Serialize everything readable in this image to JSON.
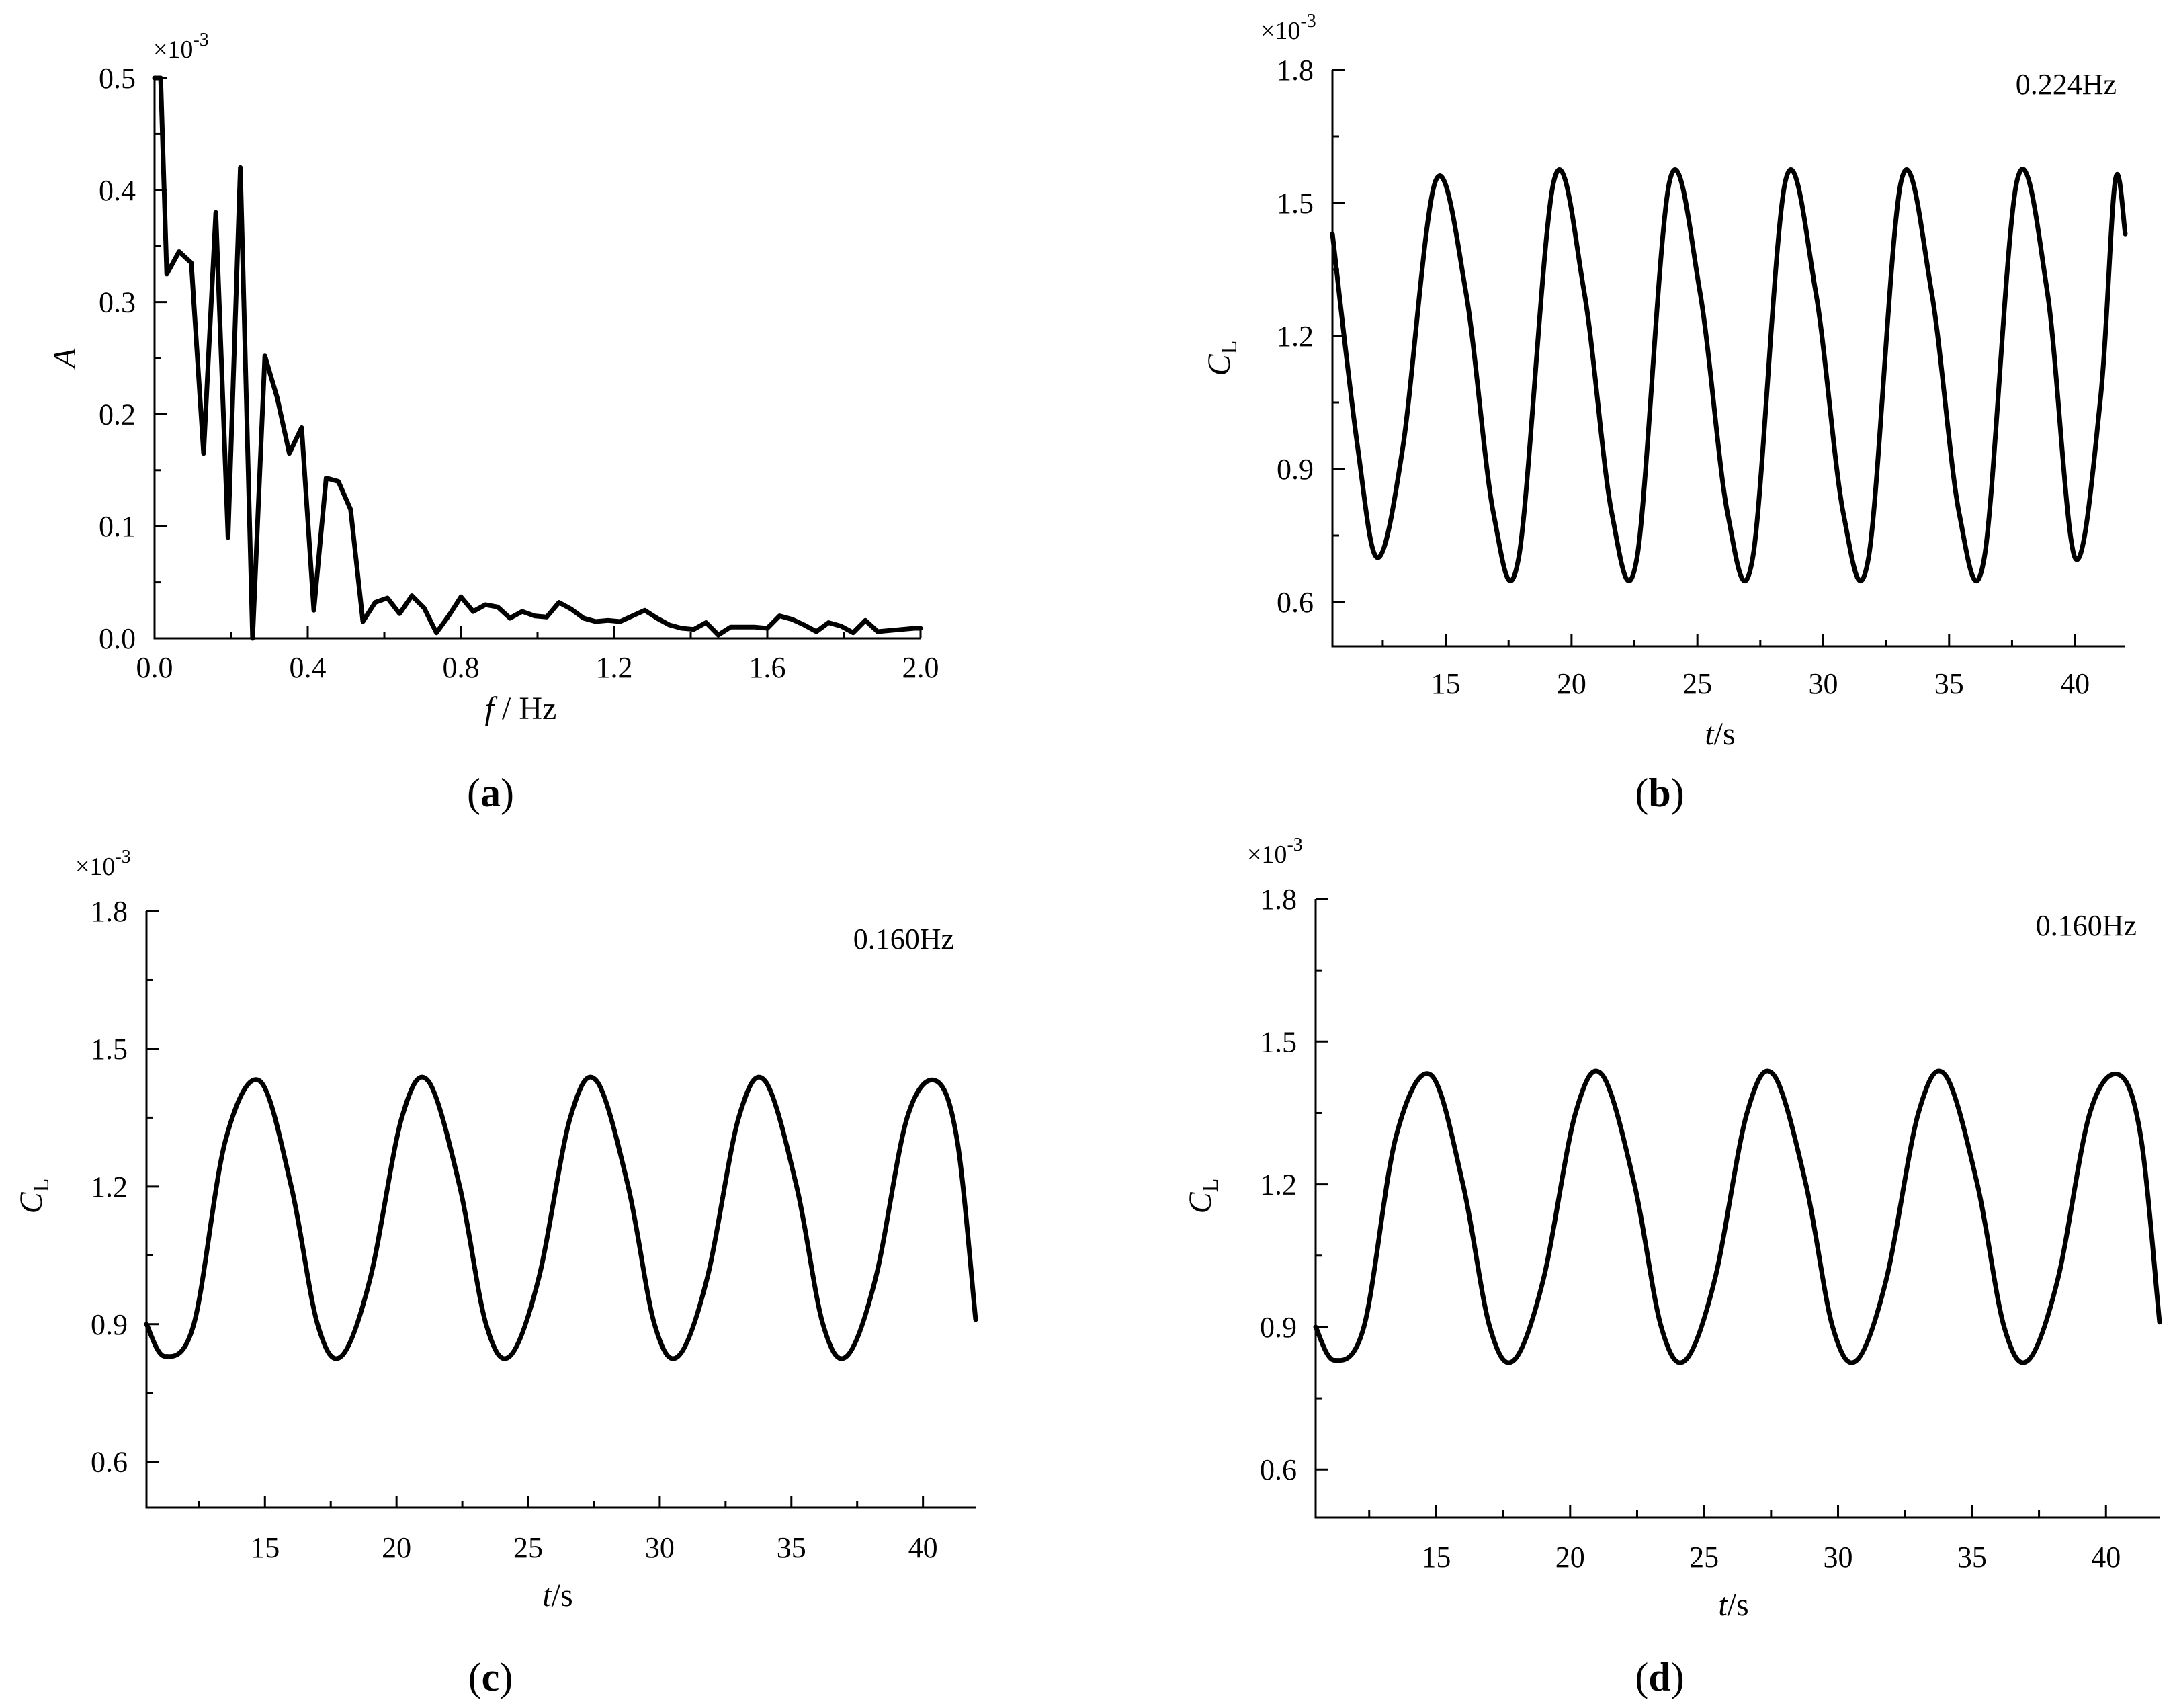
{
  "chart_data": [
    {
      "id": "a",
      "type": "line",
      "caption": {
        "open": "(",
        "letter": "a",
        "close": ")"
      },
      "x_label": {
        "italic": "f",
        "rest": " / Hz"
      },
      "y_label": {
        "italic": "A",
        "sub": ""
      },
      "multiplier": {
        "base": "×10",
        "exp": "-3"
      },
      "annotation": "",
      "xlim": [
        0.0,
        2.0
      ],
      "ylim": [
        0.0,
        0.5
      ],
      "xticks": [
        0.0,
        0.4,
        0.8,
        1.2,
        1.6,
        2.0
      ],
      "xtick_labels": [
        "0.0",
        "0.4",
        "0.8",
        "1.2",
        "1.6",
        "2.0"
      ],
      "xminor": [
        0.2,
        0.6,
        1.0,
        1.4,
        1.8
      ],
      "yticks": [
        0.0,
        0.1,
        0.2,
        0.3,
        0.4,
        0.5
      ],
      "ytick_labels": [
        "0.0",
        "0.1",
        "0.2",
        "0.3",
        "0.4",
        "0.5"
      ],
      "yminor": [
        0.05,
        0.15,
        0.25,
        0.35,
        0.45
      ],
      "series": [
        {
          "x": [
            0.0,
            0.016,
            0.032,
            0.064,
            0.096,
            0.128,
            0.16,
            0.192,
            0.224,
            0.256,
            0.288,
            0.32,
            0.352,
            0.384,
            0.416,
            0.448,
            0.48,
            0.512,
            0.544,
            0.576,
            0.608,
            0.64,
            0.672,
            0.704,
            0.736,
            0.768,
            0.8,
            0.832,
            0.864,
            0.896,
            0.928,
            0.96,
            0.992,
            1.024,
            1.056,
            1.088,
            1.12,
            1.152,
            1.184,
            1.216,
            1.248,
            1.28,
            1.312,
            1.344,
            1.376,
            1.408,
            1.44,
            1.472,
            1.504,
            1.536,
            1.568,
            1.6,
            1.632,
            1.664,
            1.696,
            1.728,
            1.76,
            1.792,
            1.824,
            1.856,
            1.888,
            1.92,
            1.952,
            1.984,
            2.0
          ],
          "y": [
            0.5,
            0.5,
            0.325,
            0.345,
            0.335,
            0.165,
            0.38,
            0.09,
            0.42,
            0.0,
            0.252,
            0.215,
            0.165,
            0.188,
            0.025,
            0.143,
            0.14,
            0.115,
            0.015,
            0.032,
            0.036,
            0.022,
            0.038,
            0.027,
            0.005,
            0.02,
            0.037,
            0.024,
            0.03,
            0.028,
            0.018,
            0.024,
            0.02,
            0.019,
            0.032,
            0.026,
            0.018,
            0.015,
            0.016,
            0.015,
            0.02,
            0.025,
            0.018,
            0.012,
            0.009,
            0.008,
            0.014,
            0.003,
            0.01,
            0.01,
            0.01,
            0.009,
            0.02,
            0.017,
            0.012,
            0.006,
            0.014,
            0.011,
            0.005,
            0.016,
            0.006,
            0.007,
            0.008,
            0.009,
            0.009
          ]
        }
      ]
    },
    {
      "id": "b",
      "type": "line",
      "caption": {
        "open": "(",
        "letter": "b",
        "close": ")"
      },
      "x_label": {
        "italic": "t",
        "rest": "/s"
      },
      "y_label": {
        "italic": "C",
        "sub": "L"
      },
      "multiplier": {
        "base": "×10",
        "exp": "-3"
      },
      "annotation": "0.224Hz",
      "xlim": [
        10.5,
        42.0
      ],
      "ylim": [
        0.5,
        1.8
      ],
      "xticks": [
        15,
        20,
        25,
        30,
        35,
        40
      ],
      "xtick_labels": [
        "15",
        "20",
        "25",
        "30",
        "35",
        "40"
      ],
      "xminor": [
        12.5,
        17.5,
        22.5,
        27.5,
        32.5,
        37.5
      ],
      "yticks": [
        0.6,
        0.9,
        1.2,
        1.5,
        1.8
      ],
      "ytick_labels": [
        "0.6",
        "0.9",
        "1.2",
        "1.5",
        "1.8"
      ],
      "yminor": [
        0.75,
        1.05,
        1.35,
        1.65
      ],
      "series": [
        {
          "x": [
            10.5,
            11.5,
            12.3,
            13.3,
            14.6,
            15.8,
            16.9,
            17.9,
            19.3,
            20.5,
            21.6,
            22.6,
            23.9,
            25.1,
            26.2,
            27.2,
            28.5,
            29.7,
            30.8,
            31.8,
            33.1,
            34.3,
            35.4,
            36.4,
            37.7,
            38.9,
            40.0,
            41.0,
            41.6,
            42.0
          ],
          "y": [
            1.43,
            0.95,
            0.7,
            0.95,
            1.55,
            1.3,
            0.8,
            0.7,
            1.55,
            1.3,
            0.8,
            0.7,
            1.55,
            1.3,
            0.8,
            0.7,
            1.55,
            1.3,
            0.8,
            0.7,
            1.55,
            1.3,
            0.8,
            0.7,
            1.55,
            1.3,
            0.7,
            1.05,
            1.55,
            1.43
          ]
        }
      ]
    },
    {
      "id": "c",
      "type": "line",
      "caption": {
        "open": "(",
        "letter": "c",
        "close": ")"
      },
      "x_label": {
        "italic": "t",
        "rest": "/s"
      },
      "y_label": {
        "italic": "C",
        "sub": "L"
      },
      "multiplier": {
        "base": "×10",
        "exp": "-3"
      },
      "annotation": "0.160Hz",
      "xlim": [
        10.5,
        42.0
      ],
      "ylim": [
        0.5,
        1.8
      ],
      "xticks": [
        15,
        20,
        25,
        30,
        35,
        40
      ],
      "xtick_labels": [
        "15",
        "20",
        "25",
        "30",
        "35",
        "40"
      ],
      "xminor": [
        12.5,
        17.5,
        22.5,
        27.5,
        32.5,
        37.5
      ],
      "yticks": [
        0.6,
        0.9,
        1.2,
        1.5,
        1.8
      ],
      "ytick_labels": [
        "0.6",
        "0.9",
        "1.2",
        "1.5",
        "1.8"
      ],
      "yminor": [
        0.75,
        1.05,
        1.35,
        1.65
      ],
      "series": [
        {
          "x": [
            10.5,
            11.2,
            12.3,
            13.5,
            14.8,
            16.0,
            17.0,
            17.9,
            19.0,
            20.2,
            21.2,
            22.4,
            23.4,
            24.3,
            25.4,
            26.6,
            27.6,
            28.8,
            29.8,
            30.7,
            31.8,
            33.0,
            34.0,
            35.2,
            36.2,
            37.1,
            38.2,
            39.4,
            40.5,
            41.3,
            42.0
          ],
          "y": [
            0.9,
            0.83,
            0.9,
            1.3,
            1.43,
            1.2,
            0.9,
            0.83,
            1.0,
            1.35,
            1.43,
            1.2,
            0.9,
            0.83,
            1.0,
            1.35,
            1.43,
            1.2,
            0.9,
            0.83,
            1.0,
            1.35,
            1.43,
            1.2,
            0.9,
            0.83,
            1.0,
            1.35,
            1.43,
            1.3,
            0.91
          ]
        }
      ]
    },
    {
      "id": "d",
      "type": "line",
      "caption": {
        "open": "(",
        "letter": "d",
        "close": ")"
      },
      "x_label": {
        "italic": "t",
        "rest": "/s"
      },
      "y_label": {
        "italic": "C",
        "sub": "L"
      },
      "multiplier": {
        "base": "×10",
        "exp": "-3"
      },
      "annotation": "0.160Hz",
      "xlim": [
        10.5,
        42.0
      ],
      "ylim": [
        0.5,
        1.8
      ],
      "xticks": [
        15,
        20,
        25,
        30,
        35,
        40
      ],
      "xtick_labels": [
        "15",
        "20",
        "25",
        "30",
        "35",
        "40"
      ],
      "xminor": [
        12.5,
        17.5,
        22.5,
        27.5,
        32.5,
        37.5
      ],
      "yticks": [
        0.6,
        0.9,
        1.2,
        1.5,
        1.8
      ],
      "ytick_labels": [
        "0.6",
        "0.9",
        "1.2",
        "1.5",
        "1.8"
      ],
      "yminor": [
        0.75,
        1.05,
        1.35,
        1.65
      ],
      "series": [
        {
          "x": [
            10.5,
            11.2,
            12.3,
            13.5,
            14.8,
            16.0,
            17.0,
            17.9,
            19.0,
            20.2,
            21.2,
            22.4,
            23.4,
            24.3,
            25.4,
            26.6,
            27.6,
            28.8,
            29.8,
            30.7,
            31.8,
            33.0,
            34.0,
            35.2,
            36.2,
            37.1,
            38.2,
            39.4,
            40.5,
            41.3,
            42.0
          ],
          "y": [
            0.9,
            0.83,
            0.9,
            1.3,
            1.43,
            1.2,
            0.9,
            0.83,
            1.0,
            1.35,
            1.43,
            1.2,
            0.9,
            0.83,
            1.0,
            1.35,
            1.43,
            1.2,
            0.9,
            0.83,
            1.0,
            1.35,
            1.43,
            1.2,
            0.9,
            0.83,
            1.0,
            1.35,
            1.43,
            1.3,
            0.91
          ]
        }
      ]
    }
  ]
}
